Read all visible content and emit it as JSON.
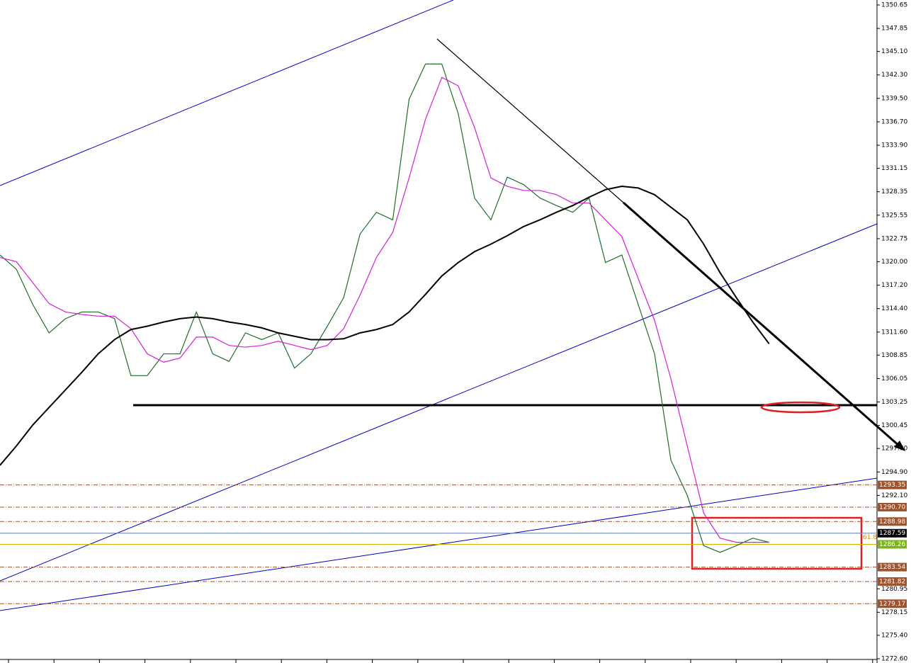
{
  "chart_data": {
    "type": "line",
    "categories": [
      null,
      null,
      null,
      null,
      null,
      null,
      null,
      null,
      null,
      null,
      null,
      null,
      null,
      null,
      null,
      null,
      null,
      null,
      null,
      null,
      null,
      null,
      null,
      null,
      null,
      null,
      null,
      null,
      null,
      null,
      null,
      null,
      null,
      null,
      null,
      null,
      null,
      null,
      null,
      null,
      null,
      null,
      null,
      null,
      null,
      null,
      null,
      null
    ],
    "series": [
      {
        "color": "#1f6f2a",
        "values": [
          1320.8,
          1319.1,
          1314.9,
          1311.5,
          1313.2,
          1314.0,
          1314.0,
          1313.2,
          1306.4,
          1306.4,
          1309.0,
          1309.0,
          1314.0,
          1309.0,
          1308.1,
          1311.5,
          1310.7,
          1311.5,
          1307.3,
          1309.0,
          1312.3,
          1315.7,
          1323.3,
          1325.9,
          1325.0,
          1339.4,
          1343.6,
          1343.6,
          1337.7,
          1327.6,
          1325.0,
          1330.1,
          1329.2,
          1327.6,
          1326.7,
          1325.9,
          1327.6,
          1319.9,
          1320.8,
          1314.9,
          1309.0,
          1296.3,
          1292.1,
          1286.1,
          1285.3,
          1286.1,
          1287.0,
          1286.5
        ]
      },
      {
        "color": "#d61fd6",
        "values": [
          1320.5,
          1320,
          1317.5,
          1315,
          1314,
          1313.7,
          1313.5,
          1313.5,
          1312,
          1309,
          1308,
          1308.5,
          1311,
          1311,
          1310,
          1309.8,
          1310,
          1310.5,
          1310,
          1309.5,
          1310,
          1312,
          1316,
          1320.5,
          1323.5,
          1330,
          1337,
          1342,
          1341,
          1336,
          1330,
          1329,
          1328.5,
          1328.5,
          1328,
          1327,
          1327,
          1325,
          1323,
          1318,
          1313,
          1306,
          1298,
          1290,
          1287,
          1286.5,
          1286.5,
          1286.5
        ]
      },
      {
        "color": "#000000",
        "values": [
          1295.7,
          1298.0,
          1300.5,
          1302.6,
          1304.7,
          1306.8,
          1309.0,
          1310.7,
          1311.9,
          1312.3,
          1312.8,
          1313.2,
          1313.4,
          1313.2,
          1312.8,
          1312.5,
          1312.1,
          1311.5,
          1311.1,
          1310.7,
          1310.7,
          1310.8,
          1311.5,
          1311.9,
          1312.5,
          1314.0,
          1316.1,
          1318.3,
          1319.9,
          1321.2,
          1322.1,
          1323.1,
          1324.2,
          1325.0,
          1325.9,
          1326.7,
          1327.7,
          1328.6,
          1329.0,
          1328.8,
          1328.0,
          1326.5,
          1325.0,
          1322.1,
          1318.7,
          1315.7,
          1312.8,
          1310.2
        ]
      }
    ],
    "ylim": [
      1272.6,
      1350.65
    ],
    "yticks": [
      1350.65,
      1347.85,
      {
        "value": 1345.1,
        "label": "1345.10"
      },
      {
        "value": 1342.3,
        "label": "1342.30"
      },
      {
        "value": 1339.5,
        "label": "1339.50"
      },
      {
        "value": 1336.7,
        "label": "1336.70"
      },
      {
        "value": 1333.9,
        "label": "1333.90"
      },
      1331.15,
      1328.35,
      1325.55,
      1322.75,
      {
        "value": 1320,
        "label": "1320.00"
      },
      {
        "value": 1317.2,
        "label": "1317.20"
      },
      {
        "value": 1314.4,
        "label": "1314.40"
      },
      {
        "value": 1311.6,
        "label": "1311.60"
      },
      1308.85,
      1306.05,
      1303.25,
      1300.45,
      {
        "value": 1297.7,
        "label": "1297.70"
      },
      {
        "value": 1294.9,
        "label": "1294.90"
      },
      {
        "value": 1292.1,
        "label": "1292.10"
      },
      1280.95,
      1278.15,
      {
        "value": 1275.4,
        "label": "1275.40"
      },
      {
        "value": 1272.6,
        "label": "1272.60"
      }
    ],
    "levels": [
      {
        "value": 1293.35,
        "color": "#a0522d"
      },
      {
        "value": 1290.7,
        "label": "1290.70",
        "color": "#a0522d"
      },
      {
        "value": 1288.98,
        "color": "#a0522d"
      },
      {
        "value": 1287.59,
        "color": "#000000"
      },
      {
        "value": 1286.26,
        "color": "#7cb518"
      },
      {
        "value": 1283.54,
        "color": "#a0522d"
      },
      {
        "value": 1281.82,
        "color": "#a0522d"
      },
      {
        "value": 1279.17,
        "color": "#a0522d"
      }
    ],
    "annotation": "61.8"
  }
}
